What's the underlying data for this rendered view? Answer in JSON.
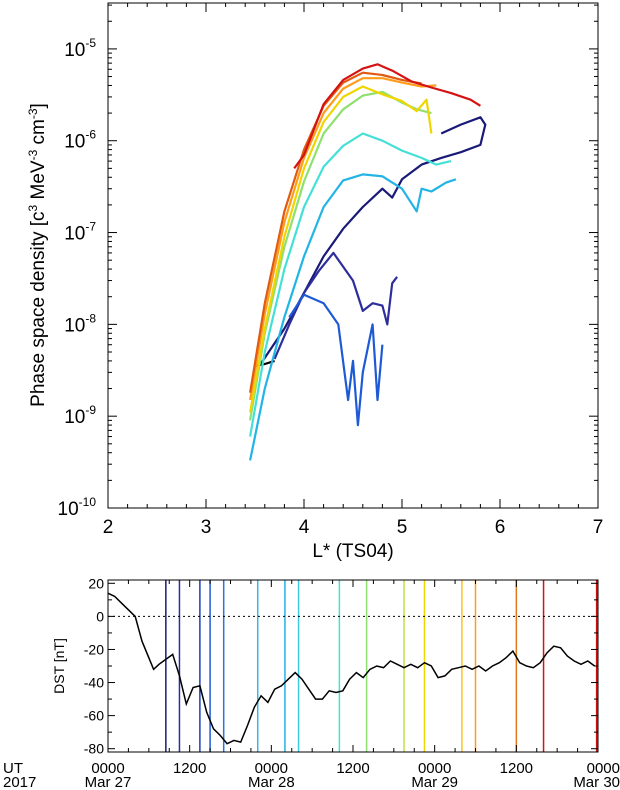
{
  "chart_data": [
    {
      "type": "line",
      "xlabel": "L* (TS04)",
      "ylabel": "Phase space density [c",
      "ylabel_sup1": "3",
      "ylabel_mid": " MeV",
      "ylabel_sup2": "-3",
      "ylabel_mid2": " cm",
      "ylabel_sup3": "-3",
      "ylabel_end": "]",
      "xlim": [
        2,
        7
      ],
      "ylim_log10": [
        -10,
        -4.5
      ],
      "yscale": "log",
      "xticks": [
        "2",
        "3",
        "4",
        "5",
        "6",
        "7"
      ],
      "yticks": [
        {
          "base": "10",
          "exp": "-10"
        },
        {
          "base": "10",
          "exp": "-9"
        },
        {
          "base": "10",
          "exp": "-8"
        },
        {
          "base": "10",
          "exp": "-7"
        },
        {
          "base": "10",
          "exp": "-6"
        },
        {
          "base": "10",
          "exp": "-5"
        }
      ],
      "series": [
        {
          "color": "#000000",
          "values": [
            [
              3.5,
              3.5e-09
            ],
            [
              3.6,
              3.7e-09
            ],
            [
              3.7,
              4e-09
            ]
          ]
        },
        {
          "color": "#1a1a78",
          "values": [
            [
              3.55,
              3.6e-09
            ],
            [
              3.8,
              9e-09
            ],
            [
              4.0,
              2.2e-08
            ],
            [
              4.2,
              5.5e-08
            ],
            [
              4.4,
              1.1e-07
            ],
            [
              4.6,
              1.9e-07
            ],
            [
              4.8,
              3e-07
            ],
            [
              4.9,
              2.4e-07
            ],
            [
              5.0,
              3.8e-07
            ],
            [
              5.2,
              5.5e-07
            ],
            [
              5.4,
              6.5e-07
            ],
            [
              5.6,
              7.5e-07
            ],
            [
              5.8,
              9e-07
            ],
            [
              5.85,
              1.5e-06
            ],
            [
              5.8,
              1.8e-06
            ],
            [
              5.6,
              1.5e-06
            ],
            [
              5.4,
              1.2e-06
            ]
          ]
        },
        {
          "color": "#2d2d9c",
          "values": [
            [
              3.7,
              4.2e-09
            ],
            [
              3.85,
              1e-08
            ],
            [
              4.0,
              2.2e-08
            ],
            [
              4.15,
              3.8e-08
            ],
            [
              4.3,
              6e-08
            ],
            [
              4.5,
              3e-08
            ],
            [
              4.6,
              1.4e-08
            ],
            [
              4.7,
              1.7e-08
            ],
            [
              4.8,
              1.6e-08
            ],
            [
              4.85,
              1e-08
            ],
            [
              4.9,
              2.8e-08
            ],
            [
              4.95,
              3.3e-08
            ]
          ]
        },
        {
          "color": "#1f5ad6",
          "values": [
            [
              3.85,
              1.2e-08
            ],
            [
              4.0,
              2.1e-08
            ],
            [
              4.2,
              1.7e-08
            ],
            [
              4.35,
              1e-08
            ],
            [
              4.45,
              1.5e-09
            ],
            [
              4.5,
              4e-09
            ],
            [
              4.55,
              8e-10
            ],
            [
              4.6,
              3e-09
            ],
            [
              4.7,
              1e-08
            ],
            [
              4.75,
              1.5e-09
            ],
            [
              4.8,
              6e-09
            ]
          ]
        },
        {
          "color": "#22b4e6",
          "values": [
            [
              3.45,
              3.3e-10
            ],
            [
              3.6,
              2e-09
            ],
            [
              3.8,
              1.2e-08
            ],
            [
              4.0,
              5.5e-08
            ],
            [
              4.2,
              1.9e-07
            ],
            [
              4.4,
              3.7e-07
            ],
            [
              4.6,
              4.3e-07
            ],
            [
              4.8,
              4.1e-07
            ],
            [
              5.0,
              3e-07
            ],
            [
              5.15,
              1.7e-07
            ],
            [
              5.2,
              3e-07
            ],
            [
              5.3,
              2.8e-07
            ],
            [
              5.45,
              3.5e-07
            ],
            [
              5.55,
              3.8e-07
            ]
          ]
        },
        {
          "color": "#44e0d8",
          "values": [
            [
              3.45,
              6e-10
            ],
            [
              3.6,
              5e-09
            ],
            [
              3.8,
              4e-08
            ],
            [
              4.0,
              1.9e-07
            ],
            [
              4.2,
              5.2e-07
            ],
            [
              4.4,
              8.8e-07
            ],
            [
              4.6,
              1.2e-06
            ],
            [
              4.8,
              1e-06
            ],
            [
              5.0,
              7.8e-07
            ],
            [
              5.2,
              6.5e-07
            ],
            [
              5.35,
              5.5e-07
            ],
            [
              5.5,
              6e-07
            ]
          ]
        },
        {
          "color": "#8ee070",
          "values": [
            [
              3.45,
              9e-10
            ],
            [
              3.6,
              8e-09
            ],
            [
              3.8,
              7e-08
            ],
            [
              4.0,
              3.6e-07
            ],
            [
              4.2,
              1.2e-06
            ],
            [
              4.4,
              2.2e-06
            ],
            [
              4.6,
              3.1e-06
            ],
            [
              4.8,
              3.4e-06
            ],
            [
              5.0,
              2.6e-06
            ],
            [
              5.15,
              2.2e-06
            ],
            [
              5.3,
              2e-06
            ]
          ]
        },
        {
          "color": "#f0d600",
          "values": [
            [
              3.45,
              1.1e-09
            ],
            [
              3.6,
              9e-09
            ],
            [
              3.8,
              9e-08
            ],
            [
              4.0,
              5e-07
            ],
            [
              4.2,
              1.6e-06
            ],
            [
              4.4,
              3e-06
            ],
            [
              4.6,
              3.9e-06
            ],
            [
              4.8,
              3.2e-06
            ],
            [
              5.0,
              2.7e-06
            ],
            [
              5.15,
              2.1e-06
            ],
            [
              5.25,
              2.8e-06
            ],
            [
              5.3,
              1.2e-06
            ]
          ]
        },
        {
          "color": "#ff9c1a",
          "values": [
            [
              3.45,
              1.5e-09
            ],
            [
              3.6,
              1.3e-08
            ],
            [
              3.8,
              1.3e-07
            ],
            [
              4.0,
              6.5e-07
            ],
            [
              4.2,
              2e-06
            ],
            [
              4.4,
              3.7e-06
            ],
            [
              4.6,
              4.8e-06
            ],
            [
              4.8,
              4.8e-06
            ],
            [
              5.0,
              4.3e-06
            ],
            [
              5.2,
              3.9e-06
            ],
            [
              5.35,
              4e-06
            ]
          ]
        },
        {
          "color": "#e05a10",
          "values": [
            [
              3.45,
              1.8e-09
            ],
            [
              3.6,
              1.7e-08
            ],
            [
              3.8,
              1.7e-07
            ],
            [
              4.0,
              8e-07
            ],
            [
              4.2,
              2.4e-06
            ],
            [
              4.4,
              4.3e-06
            ],
            [
              4.6,
              5.5e-06
            ],
            [
              4.8,
              5.2e-06
            ],
            [
              5.0,
              4.6e-06
            ],
            [
              5.2,
              4.2e-06
            ]
          ]
        },
        {
          "color": "#d41414",
          "values": [
            [
              3.9,
              5e-07
            ],
            [
              4.0,
              7e-07
            ],
            [
              4.2,
              2.5e-06
            ],
            [
              4.4,
              4.6e-06
            ],
            [
              4.6,
              6.1e-06
            ],
            [
              4.75,
              6.8e-06
            ],
            [
              4.9,
              5.8e-06
            ],
            [
              5.1,
              4.4e-06
            ],
            [
              5.3,
              3.8e-06
            ],
            [
              5.5,
              3.3e-06
            ],
            [
              5.7,
              2.8e-06
            ],
            [
              5.8,
              2.4e-06
            ]
          ]
        }
      ]
    },
    {
      "type": "line",
      "ylabel": "DST [nT]",
      "ylim": [
        -82,
        22
      ],
      "xlim_hours": [
        0,
        72
      ],
      "yticks": [
        "20",
        "0",
        "-20",
        "-40",
        "-60",
        "-80"
      ],
      "ytick_values": [
        20,
        0,
        -20,
        -40,
        -60,
        -80
      ],
      "zero_line": "dotted",
      "x_ticks": [
        {
          "hour": 0,
          "label1": "0000",
          "label2": "Mar 27"
        },
        {
          "hour": 12,
          "label1": "1200",
          "label2": ""
        },
        {
          "hour": 24,
          "label1": "0000",
          "label2": "Mar 28"
        },
        {
          "hour": 36,
          "label1": "1200",
          "label2": ""
        },
        {
          "hour": 48,
          "label1": "0000",
          "label2": "Mar 29"
        },
        {
          "hour": 60,
          "label1": "1200",
          "label2": ""
        },
        {
          "hour": 72,
          "label1": "0000",
          "label2": "Mar 30"
        }
      ],
      "x_side_label1": "UT",
      "x_side_label2": "2017",
      "markers": [
        {
          "hour": 8.5,
          "color": "#1a1a78"
        },
        {
          "hour": 10.5,
          "color": "#2d2d9c"
        },
        {
          "hour": 13.5,
          "color": "#1f3fb8"
        },
        {
          "hour": 15.0,
          "color": "#1f5ad6"
        },
        {
          "hour": 17.0,
          "color": "#2a74e0"
        },
        {
          "hour": 22.0,
          "color": "#33b8e8"
        },
        {
          "hour": 26.0,
          "color": "#22b4e6"
        },
        {
          "hour": 28.0,
          "color": "#3ccbe6"
        },
        {
          "hour": 34.0,
          "color": "#44e0d8"
        },
        {
          "hour": 38.0,
          "color": "#8ee070"
        },
        {
          "hour": 43.5,
          "color": "#bfe04a"
        },
        {
          "hour": 46.5,
          "color": "#f0d600"
        },
        {
          "hour": 52.0,
          "color": "#ffc020"
        },
        {
          "hour": 54.0,
          "color": "#ff9c1a"
        },
        {
          "hour": 60.0,
          "color": "#e07a1a"
        },
        {
          "hour": 64.0,
          "color": "#d41414"
        },
        {
          "hour": 71.8,
          "color": "#c81010"
        }
      ],
      "values": [
        [
          0,
          14
        ],
        [
          1,
          12
        ],
        [
          2,
          8
        ],
        [
          3,
          4
        ],
        [
          4,
          0
        ],
        [
          5,
          -15
        ],
        [
          6,
          -25
        ],
        [
          6.7,
          -32
        ],
        [
          7.5,
          -29
        ],
        [
          8.5,
          -26
        ],
        [
          9.5,
          -23
        ],
        [
          10.5,
          -36
        ],
        [
          11.5,
          -53
        ],
        [
          12.5,
          -43
        ],
        [
          13.5,
          -42
        ],
        [
          14.5,
          -58
        ],
        [
          15.5,
          -68
        ],
        [
          16.5,
          -72
        ],
        [
          17.5,
          -77
        ],
        [
          18.5,
          -75
        ],
        [
          19.5,
          -76
        ],
        [
          20.5,
          -66
        ],
        [
          21.5,
          -55
        ],
        [
          22.5,
          -48
        ],
        [
          23.5,
          -52
        ],
        [
          24.5,
          -44
        ],
        [
          25.5,
          -42
        ],
        [
          26.5,
          -38
        ],
        [
          27.5,
          -34
        ],
        [
          28.5,
          -38
        ],
        [
          29.5,
          -44
        ],
        [
          30.5,
          -50
        ],
        [
          31.5,
          -50
        ],
        [
          32.5,
          -45
        ],
        [
          33.5,
          -46
        ],
        [
          34.5,
          -45
        ],
        [
          35.5,
          -38
        ],
        [
          36.5,
          -34
        ],
        [
          37.5,
          -37
        ],
        [
          38.5,
          -32
        ],
        [
          39.5,
          -30
        ],
        [
          40.5,
          -31
        ],
        [
          41.5,
          -27
        ],
        [
          42.5,
          -29
        ],
        [
          43.5,
          -31
        ],
        [
          44.5,
          -29
        ],
        [
          45.5,
          -31
        ],
        [
          46.5,
          -28
        ],
        [
          47.5,
          -30
        ],
        [
          48.5,
          -37
        ],
        [
          49.5,
          -36
        ],
        [
          50.5,
          -32
        ],
        [
          51.5,
          -31
        ],
        [
          52.5,
          -30
        ],
        [
          53.5,
          -32
        ],
        [
          54.5,
          -30
        ],
        [
          55.5,
          -33
        ],
        [
          56.5,
          -30
        ],
        [
          57.5,
          -28
        ],
        [
          58.5,
          -25
        ],
        [
          59.5,
          -21
        ],
        [
          60.5,
          -28
        ],
        [
          61.5,
          -30
        ],
        [
          62.5,
          -31
        ],
        [
          63.5,
          -28
        ],
        [
          64.5,
          -22
        ],
        [
          65.5,
          -18
        ],
        [
          66.5,
          -19
        ],
        [
          67.5,
          -24
        ],
        [
          68.5,
          -27
        ],
        [
          69.5,
          -29
        ],
        [
          70.5,
          -27
        ],
        [
          71.5,
          -30
        ]
      ]
    }
  ]
}
